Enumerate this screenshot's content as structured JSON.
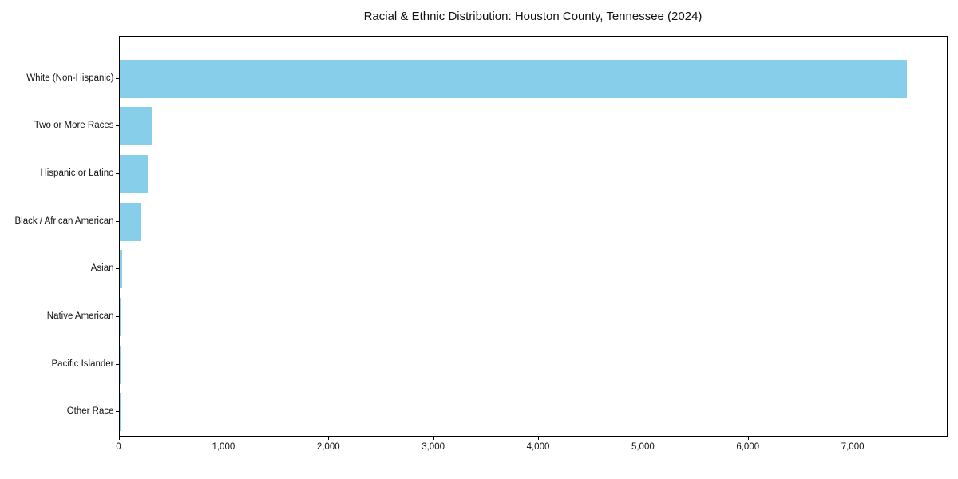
{
  "title": "Racial & Ethnic Distribution: Houston County, Tennessee (2024)",
  "chart_data": {
    "type": "bar",
    "orientation": "horizontal",
    "title": "Racial & Ethnic Distribution: Houston County, Tennessee (2024)",
    "categories": [
      "White (Non-Hispanic)",
      "Two or More Races",
      "Hispanic or Latino",
      "Black / African American",
      "Asian",
      "Native American",
      "Pacific Islander",
      "Other Race"
    ],
    "values": [
      7510,
      315,
      268,
      210,
      25,
      9,
      2,
      1
    ],
    "bar_color": "#87CEEB",
    "text_color": "#111111",
    "xlabel": "",
    "ylabel": "",
    "xlim": [
      0,
      7905
    ],
    "x_ticks": [
      0,
      1000,
      2000,
      3000,
      4000,
      5000,
      6000,
      7000
    ],
    "x_tick_labels": [
      "0",
      "1,000",
      "2,000",
      "3,000",
      "4,000",
      "5,000",
      "6,000",
      "7,000"
    ],
    "grid": false,
    "legend_position": "none"
  }
}
